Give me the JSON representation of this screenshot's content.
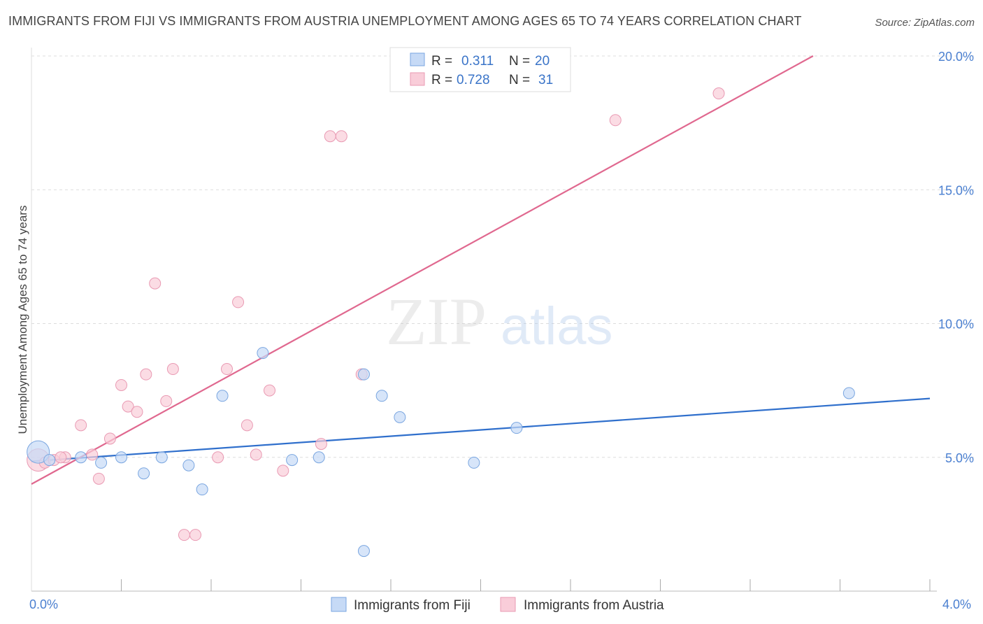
{
  "header": {
    "title": "IMMIGRANTS FROM FIJI VS IMMIGRANTS FROM AUSTRIA UNEMPLOYMENT AMONG AGES 65 TO 74 YEARS CORRELATION CHART",
    "source": "Source: ZipAtlas.com"
  },
  "watermark": {
    "zip": "ZIP",
    "atlas": "atlas"
  },
  "colors": {
    "fiji_fill": "#c6daf6",
    "fiji_stroke": "#7aa6e0",
    "fiji_line": "#2f6fcc",
    "austria_fill": "#f9cdd9",
    "austria_stroke": "#e99ab3",
    "austria_line": "#e0688f",
    "grid": "#dddddd",
    "tick_text": "#4a7fd0"
  },
  "legend": {
    "r_label": "R =",
    "n_label": "N =",
    "fiji": {
      "r": "0.311",
      "n": "20"
    },
    "austria": {
      "r": "0.728",
      "n": "31"
    }
  },
  "chart_data": {
    "type": "scatter",
    "title": "IMMIGRANTS FROM FIJI VS IMMIGRANTS FROM AUSTRIA UNEMPLOYMENT AMONG AGES 65 TO 74 YEARS CORRELATION CHART",
    "xlabel": "",
    "ylabel": "Unemployment Among Ages 65 to 74 years",
    "xlim": [
      0,
      4
    ],
    "ylim": [
      0,
      20
    ],
    "x_tick_labels": [
      "0.0%",
      "4.0%"
    ],
    "y_ticks": [
      5,
      10,
      15,
      20
    ],
    "y_tick_labels": [
      "5.0%",
      "10.0%",
      "15.0%",
      "20.0%"
    ],
    "series": [
      {
        "name": "Immigrants from Fiji",
        "r": 0.311,
        "n": 20,
        "trend": {
          "x0": 0,
          "y0": 4.85,
          "x1": 4,
          "y1": 7.2
        },
        "points": [
          {
            "x": 0.03,
            "y": 5.2,
            "big": true
          },
          {
            "x": 0.22,
            "y": 5.0
          },
          {
            "x": 0.31,
            "y": 4.8
          },
          {
            "x": 0.4,
            "y": 5.0
          },
          {
            "x": 0.5,
            "y": 4.4
          },
          {
            "x": 0.58,
            "y": 5.0
          },
          {
            "x": 0.7,
            "y": 4.7
          },
          {
            "x": 0.76,
            "y": 3.8
          },
          {
            "x": 0.85,
            "y": 7.3
          },
          {
            "x": 1.03,
            "y": 8.9
          },
          {
            "x": 1.16,
            "y": 4.9
          },
          {
            "x": 1.28,
            "y": 5.0
          },
          {
            "x": 1.48,
            "y": 1.5
          },
          {
            "x": 1.48,
            "y": 8.1
          },
          {
            "x": 1.56,
            "y": 7.3
          },
          {
            "x": 1.64,
            "y": 6.5
          },
          {
            "x": 1.97,
            "y": 4.8
          },
          {
            "x": 2.16,
            "y": 6.1
          },
          {
            "x": 3.64,
            "y": 7.4
          },
          {
            "x": 0.08,
            "y": 4.9
          }
        ]
      },
      {
        "name": "Immigrants from Austria",
        "r": 0.728,
        "n": 31,
        "trend": {
          "x0": 0,
          "y0": 4.0,
          "x1": 3.48,
          "y1": 20.0
        },
        "points": [
          {
            "x": 0.03,
            "y": 4.9,
            "big": true
          },
          {
            "x": 0.06,
            "y": 4.8
          },
          {
            "x": 0.1,
            "y": 4.9
          },
          {
            "x": 0.15,
            "y": 5.0
          },
          {
            "x": 0.22,
            "y": 6.2
          },
          {
            "x": 0.27,
            "y": 5.1
          },
          {
            "x": 0.3,
            "y": 4.2
          },
          {
            "x": 0.35,
            "y": 5.7
          },
          {
            "x": 0.4,
            "y": 7.7
          },
          {
            "x": 0.43,
            "y": 6.9
          },
          {
            "x": 0.47,
            "y": 6.7
          },
          {
            "x": 0.51,
            "y": 8.1
          },
          {
            "x": 0.55,
            "y": 11.5
          },
          {
            "x": 0.6,
            "y": 7.1
          },
          {
            "x": 0.63,
            "y": 8.3
          },
          {
            "x": 0.68,
            "y": 2.1
          },
          {
            "x": 0.73,
            "y": 2.1
          },
          {
            "x": 0.83,
            "y": 5.0
          },
          {
            "x": 0.87,
            "y": 8.3
          },
          {
            "x": 0.92,
            "y": 10.8
          },
          {
            "x": 0.96,
            "y": 6.2
          },
          {
            "x": 1.0,
            "y": 5.1
          },
          {
            "x": 1.06,
            "y": 7.5
          },
          {
            "x": 1.12,
            "y": 4.5
          },
          {
            "x": 1.29,
            "y": 5.5
          },
          {
            "x": 1.33,
            "y": 17.0
          },
          {
            "x": 1.38,
            "y": 17.0
          },
          {
            "x": 1.47,
            "y": 8.1
          },
          {
            "x": 2.6,
            "y": 17.6
          },
          {
            "x": 3.06,
            "y": 18.6
          },
          {
            "x": 0.13,
            "y": 5.0
          }
        ]
      }
    ]
  }
}
